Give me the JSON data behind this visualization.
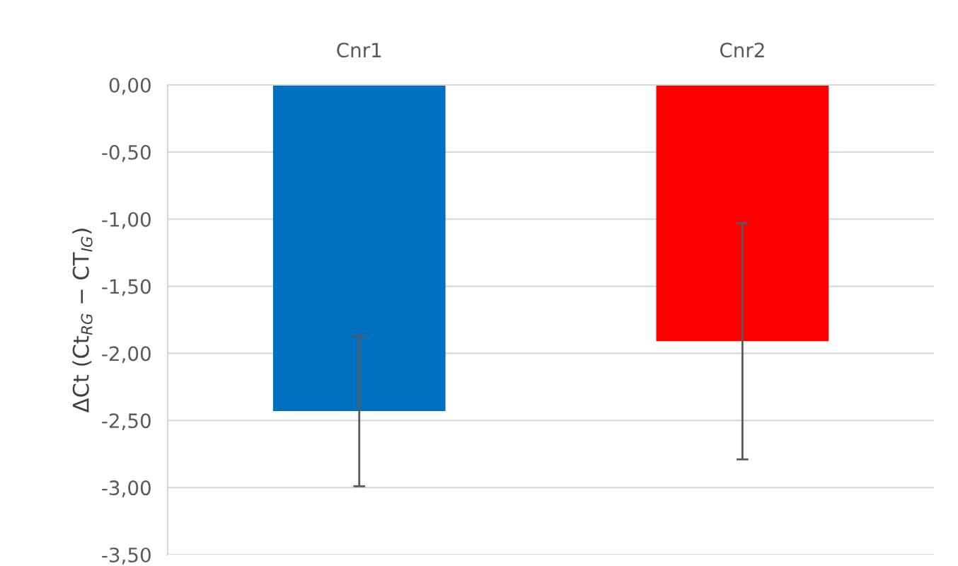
{
  "chart_data": {
    "type": "bar",
    "ylabel": "ΔCt (Ct$_{RG}$ − CT$_{IG}$)",
    "categories": [
      "Cnr1",
      "Cnr2"
    ],
    "values": [
      -2.43,
      -1.91
    ],
    "colors": [
      "#0070c0",
      "#ff0000"
    ],
    "errors": [
      0.56,
      0.88
    ],
    "ylim": [
      -3.5,
      0
    ],
    "yticks": [
      {
        "value": 0,
        "label": "0,00"
      },
      {
        "value": -0.5,
        "label": "-0,50"
      },
      {
        "value": -1.0,
        "label": "-1,00"
      },
      {
        "value": -1.5,
        "label": "-1,50"
      },
      {
        "value": -2.0,
        "label": "-2,00"
      },
      {
        "value": -2.5,
        "label": "-2,50"
      },
      {
        "value": -3.0,
        "label": "-3,00"
      },
      {
        "value": -3.5,
        "label": "-3,50"
      }
    ],
    "grid": "y"
  }
}
